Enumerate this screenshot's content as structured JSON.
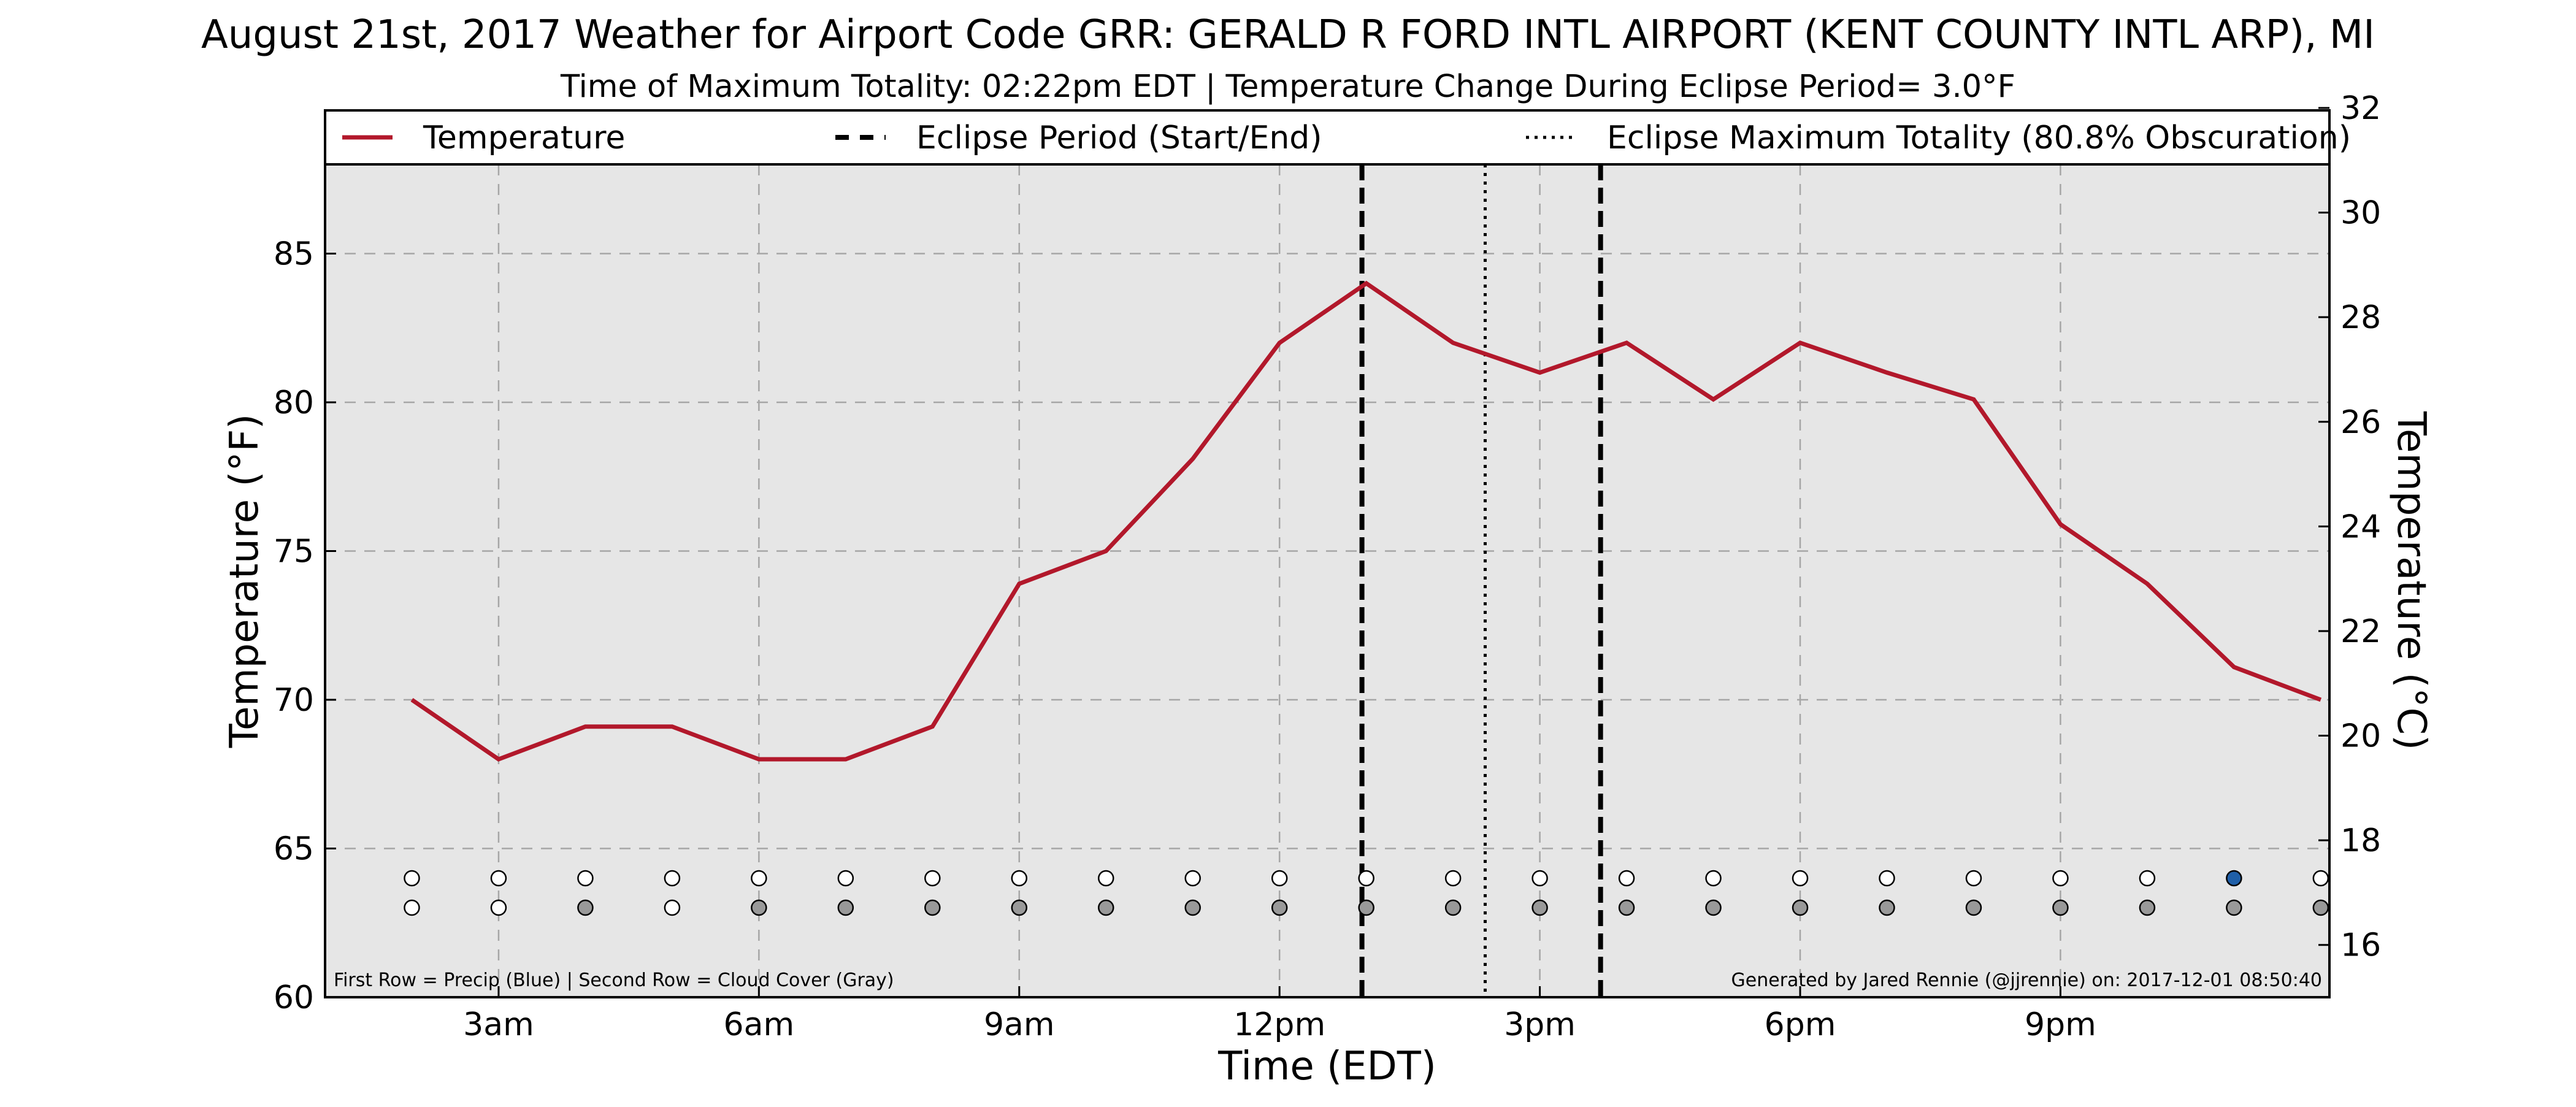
{
  "chart_data": {
    "type": "line",
    "title": "August 21st, 2017 Weather for Airport Code GRR: GERALD R FORD INTL AIRPORT (KENT COUNTY INTL ARP), MI",
    "subtitle": "Time of Maximum Totality: 02:22pm EDT | Temperature Change During Eclipse Period= 3.0°F",
    "xlabel": "Time (EDT)",
    "ylabel": "Temperature (°F)",
    "ylabel_right": "Temperature (°C)",
    "x_range": [
      "1:00am",
      "11:59pm"
    ],
    "ylim": [
      60,
      88
    ],
    "ylim_right": [
      15,
      32
    ],
    "grid": true,
    "legend_position": "top",
    "legend": [
      {
        "label": "Temperature",
        "style": "solid",
        "color": "#b2182b"
      },
      {
        "label": "Eclipse Period (Start/End)",
        "style": "dashed",
        "color": "#000000"
      },
      {
        "label": "Eclipse Maximum Totality (80.8% Obscuration)",
        "style": "dotted",
        "color": "#000000"
      }
    ],
    "x_ticks": [
      {
        "label": "3am",
        "hour": 3
      },
      {
        "label": "6am",
        "hour": 6
      },
      {
        "label": "9am",
        "hour": 9
      },
      {
        "label": "12pm",
        "hour": 12
      },
      {
        "label": "3pm",
        "hour": 15
      },
      {
        "label": "6pm",
        "hour": 18
      },
      {
        "label": "9pm",
        "hour": 21
      }
    ],
    "y_ticks": [
      60,
      65,
      70,
      75,
      80,
      85
    ],
    "y_ticks_right": [
      16,
      18,
      20,
      22,
      24,
      26,
      28,
      30,
      32
    ],
    "series": [
      {
        "name": "Temperature",
        "color": "#b2182b",
        "hours": [
          2,
          3,
          4,
          5,
          6,
          7,
          8,
          9,
          10,
          11,
          12,
          13,
          14,
          15,
          16,
          17,
          18,
          19,
          20,
          21,
          22,
          23,
          24
        ],
        "values": [
          70,
          68,
          69.1,
          69.1,
          68,
          68,
          69.1,
          73.9,
          75,
          78.1,
          82,
          84,
          82,
          81,
          82,
          80.1,
          82,
          81,
          80.1,
          75.9,
          73.9,
          71.1,
          70
        ]
      }
    ],
    "eclipse_start_hour": 12.95,
    "eclipse_end_hour": 15.7,
    "eclipse_max_hour": 14.37,
    "precip_row": {
      "name": "Precip",
      "hours": [
        2,
        3,
        4,
        5,
        6,
        7,
        8,
        9,
        10,
        11,
        12,
        13,
        14,
        15,
        16,
        17,
        18,
        19,
        20,
        21,
        22,
        23,
        24
      ],
      "status": [
        "none",
        "none",
        "none",
        "none",
        "none",
        "none",
        "none",
        "none",
        "none",
        "none",
        "none",
        "none",
        "none",
        "none",
        "none",
        "none",
        "none",
        "none",
        "none",
        "none",
        "none",
        "precip",
        "none"
      ]
    },
    "cloud_row": {
      "name": "Cloud Cover",
      "hours": [
        2,
        3,
        4,
        5,
        6,
        7,
        8,
        9,
        10,
        11,
        12,
        13,
        14,
        15,
        16,
        17,
        18,
        19,
        20,
        21,
        22,
        23,
        24
      ],
      "status": [
        "clear",
        "clear",
        "cloudy",
        "clear",
        "cloudy",
        "cloudy",
        "cloudy",
        "cloudy",
        "cloudy",
        "cloudy",
        "cloudy",
        "cloudy",
        "cloudy",
        "cloudy",
        "cloudy",
        "cloudy",
        "cloudy",
        "cloudy",
        "cloudy",
        "cloudy",
        "cloudy",
        "cloudy",
        "cloudy"
      ]
    },
    "colors": {
      "plot_bg": "#e6e6e6",
      "line": "#b2182b",
      "precip": "#1f5fa8",
      "cloud": "#999999",
      "empty": "#ffffff",
      "grid": "#a6a6a6"
    },
    "annotations": {
      "bottom_left": "First Row = Precip (Blue) | Second Row = Cloud Cover (Gray)",
      "bottom_right": "Generated by Jared Rennie (@jjrennie) on: 2017-12-01 08:50:40"
    }
  }
}
